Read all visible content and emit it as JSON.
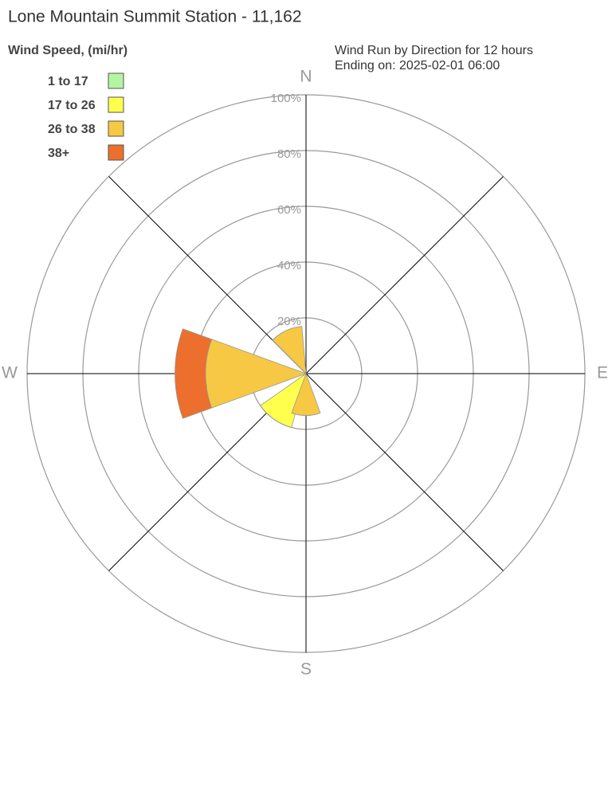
{
  "chart_data": {
    "type": "windrose",
    "title": "Lone Mountain Summit Station - 11,162",
    "legend_title": "Wind Speed, (mi/hr)",
    "subtitle": [
      "Wind Run by Direction for 12 hours",
      "Ending on: 2025-02-01 06:00"
    ],
    "compass_labels": [
      "N",
      "E",
      "S",
      "W"
    ],
    "directions": [
      335,
      270,
      215,
      180
    ],
    "sector_width": 40,
    "rlim": [
      0,
      100
    ],
    "rticks": [
      {
        "value": 20,
        "label": "20%"
      },
      {
        "value": 40,
        "label": "40%"
      },
      {
        "value": 60,
        "label": "60%"
      },
      {
        "value": 80,
        "label": "80%"
      },
      {
        "value": 100,
        "label": "100%"
      }
    ],
    "series": [
      {
        "name": "1 to 17",
        "color": "#b3f5a3",
        "values": [
          0,
          0,
          0,
          0
        ]
      },
      {
        "name": "17 to 26",
        "color": "#ffff4d",
        "values": [
          0,
          0,
          20,
          0
        ]
      },
      {
        "name": "26 to 38",
        "color": "#f7c843",
        "values": [
          17,
          36,
          0,
          15
        ]
      },
      {
        "name": "38+",
        "color": "#ec6f2d",
        "values": [
          0,
          11,
          0,
          0
        ]
      }
    ]
  }
}
